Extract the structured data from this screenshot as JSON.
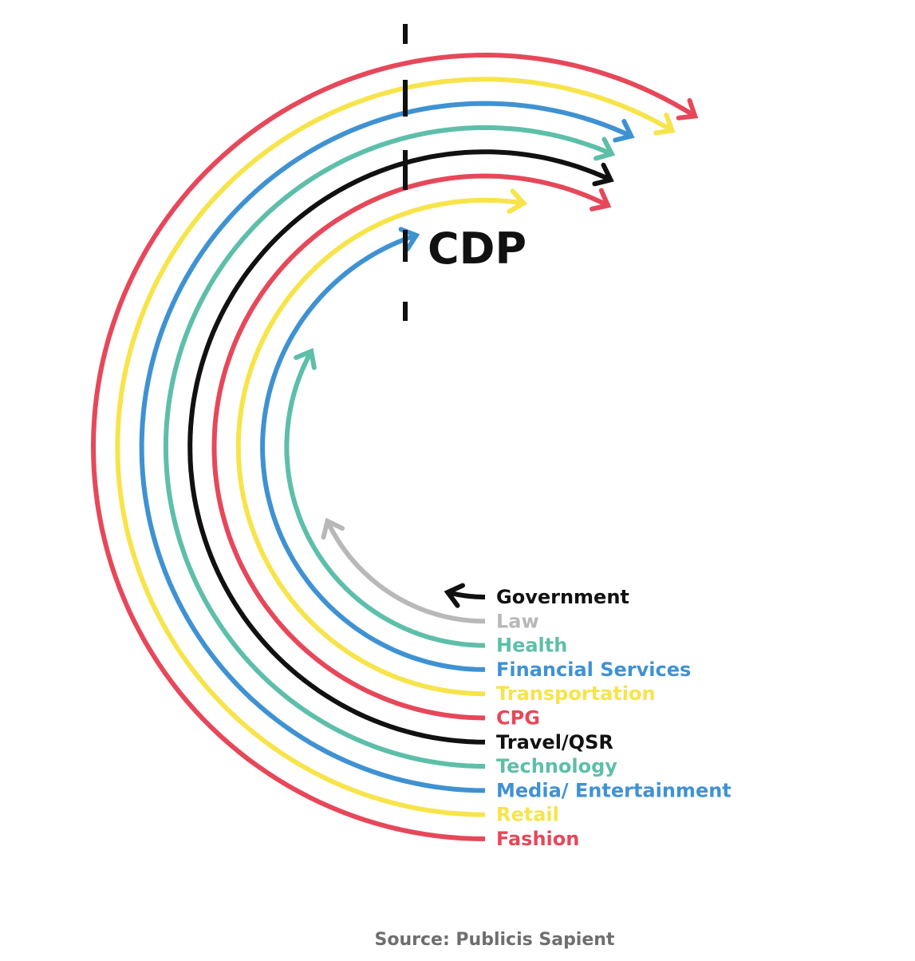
{
  "marker_label": "CDP",
  "source": "Source: Publicis Sapient",
  "industries": [
    {
      "label": "Government",
      "color": "#111111",
      "progress": 0.08
    },
    {
      "label": "Law",
      "color": "#b8b8b8",
      "progress": 0.36
    },
    {
      "label": "Health",
      "color": "#5dbfa9",
      "progress": 0.66
    },
    {
      "label": "Financial Services",
      "color": "#3f92d2",
      "progress": 0.9
    },
    {
      "label": "Transportation",
      "color": "#f7e44a",
      "progress": 1.05
    },
    {
      "label": "CPG",
      "color": "#e6485a",
      "progress": 1.15
    },
    {
      "label": "Travel/QSR",
      "color": "#111111",
      "progress": 1.14
    },
    {
      "label": "Technology",
      "color": "#5dbfa9",
      "progress": 1.13
    },
    {
      "label": "Media/ Entertainment",
      "color": "#3f92d2",
      "progress": 1.14
    },
    {
      "label": "Retail",
      "color": "#f7e44a",
      "progress": 1.17
    },
    {
      "label": "Fashion",
      "color": "#e6485a",
      "progress": 1.18
    }
  ]
}
